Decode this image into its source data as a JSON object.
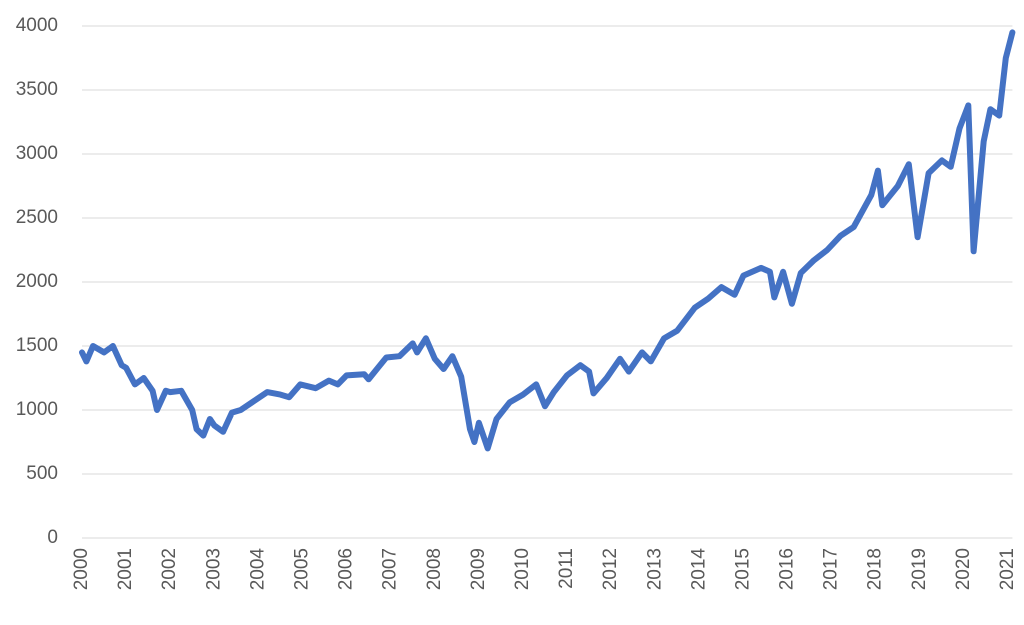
{
  "chart_data": {
    "type": "line",
    "x": [
      2000.0,
      2000.1,
      2000.25,
      2000.5,
      2000.7,
      2000.9,
      2001.0,
      2001.2,
      2001.4,
      2001.6,
      2001.7,
      2001.9,
      2002.0,
      2002.25,
      2002.5,
      2002.6,
      2002.75,
      2002.9,
      2003.0,
      2003.2,
      2003.4,
      2003.6,
      2003.9,
      2004.2,
      2004.5,
      2004.7,
      2004.95,
      2005.3,
      2005.6,
      2005.8,
      2006.0,
      2006.4,
      2006.5,
      2006.9,
      2007.2,
      2007.5,
      2007.6,
      2007.8,
      2008.0,
      2008.2,
      2008.4,
      2008.6,
      2008.8,
      2008.9,
      2009.0,
      2009.2,
      2009.4,
      2009.7,
      2010.0,
      2010.3,
      2010.5,
      2010.7,
      2011.0,
      2011.3,
      2011.5,
      2011.6,
      2011.9,
      2012.2,
      2012.4,
      2012.7,
      2012.9,
      2013.2,
      2013.5,
      2013.9,
      2014.2,
      2014.5,
      2014.8,
      2015.0,
      2015.4,
      2015.6,
      2015.7,
      2015.9,
      2016.1,
      2016.3,
      2016.6,
      2016.9,
      2017.2,
      2017.5,
      2017.9,
      2018.05,
      2018.15,
      2018.5,
      2018.75,
      2018.95,
      2019.2,
      2019.5,
      2019.7,
      2019.9,
      2020.1,
      2020.22,
      2020.45,
      2020.6,
      2020.8,
      2020.95,
      2021.1
    ],
    "series": [
      {
        "color": "#4472c4",
        "values": [
          1450,
          1380,
          1500,
          1450,
          1500,
          1350,
          1330,
          1200,
          1250,
          1150,
          1000,
          1150,
          1140,
          1150,
          1000,
          850,
          800,
          930,
          880,
          830,
          980,
          1000,
          1070,
          1140,
          1120,
          1100,
          1200,
          1170,
          1230,
          1200,
          1270,
          1280,
          1240,
          1410,
          1420,
          1520,
          1450,
          1560,
          1400,
          1320,
          1420,
          1260,
          850,
          750,
          900,
          700,
          930,
          1060,
          1120,
          1200,
          1030,
          1140,
          1270,
          1350,
          1300,
          1130,
          1250,
          1400,
          1300,
          1450,
          1380,
          1560,
          1620,
          1800,
          1870,
          1960,
          1900,
          2050,
          2110,
          2080,
          1880,
          2080,
          1830,
          2070,
          2170,
          2250,
          2360,
          2430,
          2680,
          2870,
          2600,
          2750,
          2920,
          2350,
          2850,
          2950,
          2900,
          3200,
          3380,
          2240,
          3100,
          3350,
          3300,
          3750,
          3950
        ]
      }
    ],
    "xlim": [
      2000,
      2021.1
    ],
    "xticks": [
      2000,
      2001,
      2002,
      2003,
      2004,
      2005,
      2006,
      2007,
      2008,
      2009,
      2010,
      2011,
      2012,
      2013,
      2014,
      2015,
      2016,
      2017,
      2018,
      2019,
      2020,
      2021
    ],
    "ylim": [
      0,
      4000
    ],
    "yticks": [
      0,
      500,
      1000,
      1500,
      2000,
      2500,
      3000,
      3500,
      4000
    ],
    "grid": true
  }
}
